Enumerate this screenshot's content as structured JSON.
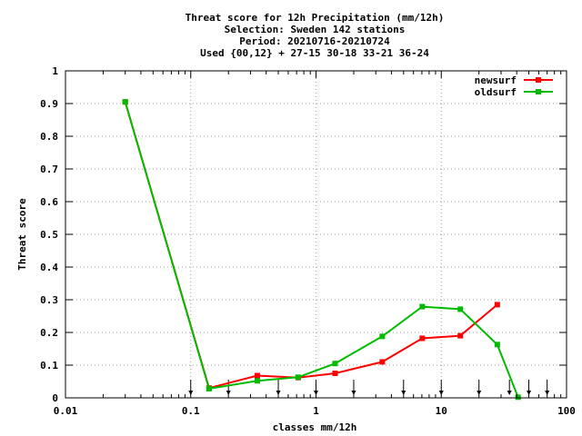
{
  "chart_data": {
    "type": "line",
    "title_lines": [
      "Threat score  for 12h Precipitation (mm/12h)",
      "Selection: Sweden    142 stations",
      "Period: 20210716-20210724",
      "Used {00,12} + 27-15 30-18 33-21 36-24"
    ],
    "xlabel": "classes mm/12h",
    "ylabel": "Threat score",
    "xscale": "log",
    "xlim": [
      0.01,
      100
    ],
    "ylim": [
      0,
      1
    ],
    "xticks": [
      {
        "value": 0.01,
        "label": "0.01"
      },
      {
        "value": 0.1,
        "label": "0.1"
      },
      {
        "value": 1,
        "label": "1"
      },
      {
        "value": 10,
        "label": "10"
      },
      {
        "value": 100,
        "label": "100"
      }
    ],
    "yticks": [
      {
        "value": 0,
        "label": "0"
      },
      {
        "value": 0.1,
        "label": "0.1"
      },
      {
        "value": 0.2,
        "label": "0.2"
      },
      {
        "value": 0.3,
        "label": "0.3"
      },
      {
        "value": 0.4,
        "label": "0.4"
      },
      {
        "value": 0.5,
        "label": "0.5"
      },
      {
        "value": 0.6,
        "label": "0.6"
      },
      {
        "value": 0.7,
        "label": "0.7"
      },
      {
        "value": 0.8,
        "label": "0.8"
      },
      {
        "value": 0.9,
        "label": "0.9"
      },
      {
        "value": 1,
        "label": "1"
      }
    ],
    "grid": true,
    "legend_position": "top-right",
    "threshold_arrows": [
      0.1,
      0.2,
      0.5,
      1,
      2,
      5,
      10,
      20,
      35,
      50,
      70
    ],
    "series": [
      {
        "name": "newsurf",
        "color": "#ff0000",
        "x": [
          0.03,
          0.14,
          0.34,
          0.72,
          1.42,
          3.38,
          7.05,
          14.2,
          28.0
        ],
        "y": [
          0.905,
          0.03,
          0.068,
          0.062,
          0.075,
          0.11,
          0.182,
          0.19,
          0.285
        ]
      },
      {
        "name": "oldsurf",
        "color": "#00bb00",
        "x": [
          0.03,
          0.14,
          0.34,
          0.72,
          1.42,
          3.38,
          7.05,
          14.2,
          28.0,
          41.0
        ],
        "y": [
          0.905,
          0.028,
          0.052,
          0.063,
          0.105,
          0.188,
          0.279,
          0.271,
          0.163,
          0.002
        ]
      }
    ]
  }
}
